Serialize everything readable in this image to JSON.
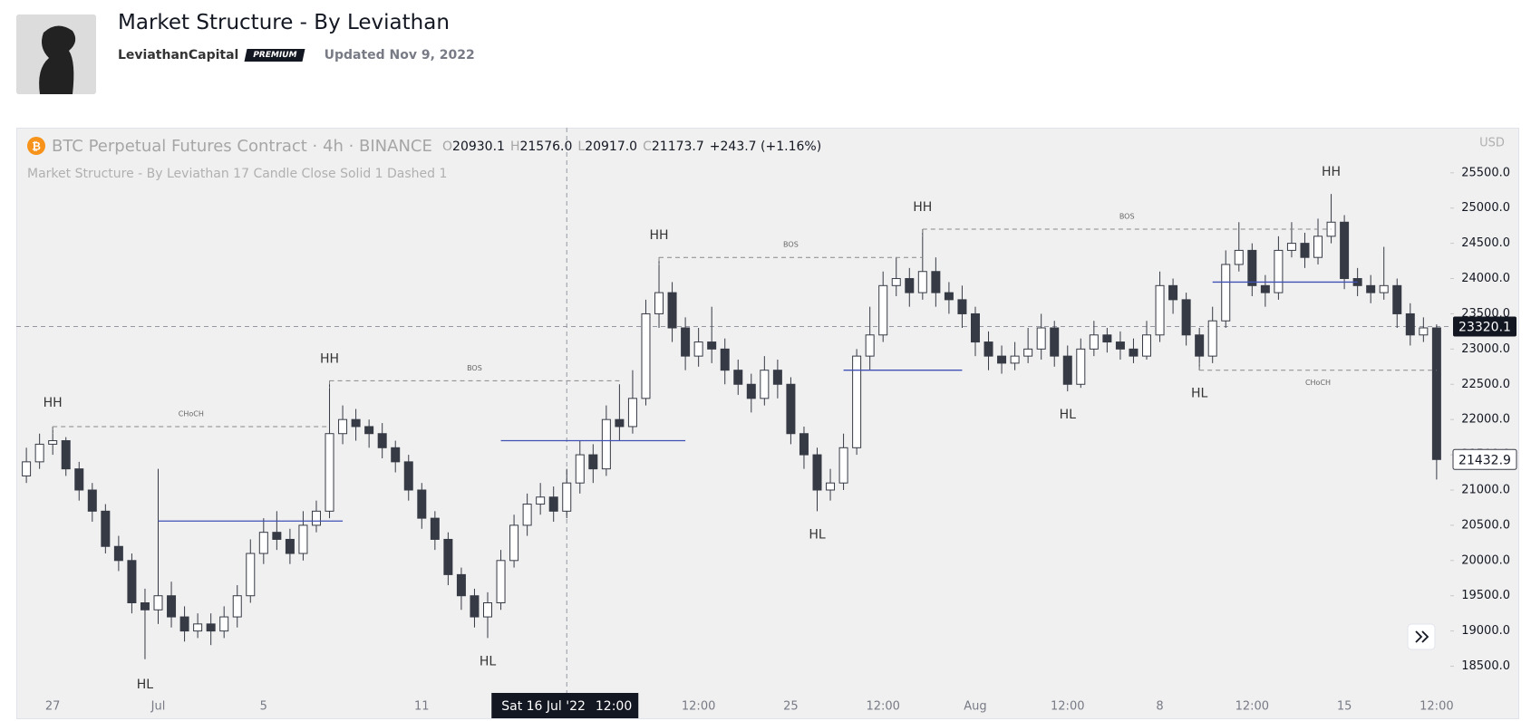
{
  "header": {
    "title": "Market Structure - By Leviathan",
    "author": "LeviathanCapital",
    "badge": "PREMIUM",
    "updated": "Updated Nov 9, 2022"
  },
  "chart_data": {
    "type": "candlestick",
    "symbol": "BTC Perpetual Futures Contract · 4h · BINANCE",
    "legend": {
      "o_label": "O",
      "o": "20930.1",
      "h_label": "H",
      "h": "21576.0",
      "l_label": "L",
      "l": "20917.0",
      "c_label": "C",
      "c": "21173.7",
      "change": "+243.7 (+1.16%)"
    },
    "indicator": "Market Structure - By Leviathan 17 Candle Close Solid 1 Dashed 1",
    "currency": "USD",
    "categories": [
      null,
      null,
      "27",
      null,
      null,
      null,
      null,
      null,
      null,
      null,
      "Jul",
      null,
      null,
      null,
      null,
      null,
      null,
      null,
      "5",
      null,
      null,
      null,
      null,
      null,
      null,
      null,
      null,
      null,
      null,
      null,
      "11",
      null,
      null,
      null,
      null,
      null,
      null,
      null,
      null,
      null,
      null,
      null,
      null,
      null,
      null,
      null,
      null,
      null,
      null,
      null,
      null,
      "12:00",
      null,
      null,
      null,
      null,
      null,
      null,
      "25",
      null,
      null,
      null,
      null,
      null,
      null,
      "12:00",
      null,
      null,
      null,
      null,
      null,
      null,
      "Aug",
      null,
      null,
      null,
      null,
      null,
      null,
      "12:00",
      null,
      null,
      null,
      null,
      null,
      null,
      "8",
      null,
      null,
      null,
      null,
      null,
      null,
      "12:00",
      null,
      null,
      null,
      null,
      null,
      null,
      "15",
      null,
      null,
      null,
      null,
      null,
      null,
      "12:00"
    ],
    "open": [
      21200,
      21400,
      21650,
      21700,
      21300,
      21000,
      20700,
      20200,
      20000,
      19400,
      19300,
      19500,
      19200,
      19000,
      19100,
      19000,
      19200,
      19500,
      20100,
      20400,
      20300,
      20100,
      20500,
      20700,
      21800,
      22000,
      21900,
      21800,
      21600,
      21400,
      21000,
      20600,
      20300,
      19800,
      19500,
      19200,
      19400,
      20000,
      20500,
      20800,
      20900,
      20700,
      21100,
      21500,
      21300,
      22000,
      21900,
      22300,
      23500,
      23800,
      23300,
      22900,
      23100,
      23000,
      22700,
      22500,
      22300,
      22700,
      22500,
      21800,
      21500,
      21000,
      21100,
      21600,
      22900,
      23200,
      23900,
      24000,
      23800,
      24100,
      23800,
      23700,
      23500,
      23100,
      22900,
      22800,
      22900,
      23000,
      23300,
      22900,
      22500,
      23000,
      23200,
      23100,
      23000,
      22900,
      23200,
      23900,
      23700,
      23200,
      22900,
      23400,
      24200,
      24400,
      23900,
      23800,
      24400,
      24500,
      24300,
      24600,
      24800,
      24000,
      23900,
      23800,
      23900,
      23500,
      23200,
      23300
    ],
    "high": [
      21600,
      21800,
      21900,
      21750,
      21400,
      21100,
      20800,
      20350,
      20100,
      19600,
      21300,
      19700,
      19350,
      19250,
      19250,
      19350,
      19650,
      20300,
      20600,
      20700,
      20450,
      20700,
      20850,
      22550,
      22200,
      22150,
      22000,
      21950,
      21700,
      21500,
      21100,
      20700,
      20400,
      19900,
      19600,
      19550,
      20150,
      20650,
      20950,
      21100,
      21050,
      21300,
      21700,
      21650,
      22200,
      22500,
      22700,
      23700,
      24300,
      23950,
      23450,
      23300,
      23600,
      23150,
      22850,
      22650,
      22900,
      22850,
      22600,
      21900,
      21600,
      21300,
      21800,
      23000,
      23600,
      24100,
      24300,
      24150,
      24700,
      24300,
      23950,
      23900,
      23600,
      23250,
      23050,
      23100,
      23300,
      23500,
      23400,
      23050,
      23150,
      23400,
      23300,
      23250,
      23150,
      23400,
      24100,
      24000,
      23800,
      23300,
      23600,
      24400,
      24800,
      24500,
      24050,
      24600,
      24800,
      24650,
      24850,
      25200,
      24900,
      24150,
      24050,
      24450,
      24000,
      23650,
      23450,
      23350
    ],
    "low": [
      21100,
      21300,
      21500,
      21200,
      20850,
      20550,
      20100,
      19850,
      19250,
      18600,
      19100,
      19050,
      18850,
      18900,
      18800,
      18900,
      19050,
      19400,
      19950,
      20150,
      19950,
      20000,
      20400,
      20600,
      21650,
      21700,
      21600,
      21450,
      21250,
      20850,
      20450,
      20150,
      19650,
      19300,
      19050,
      18900,
      19300,
      19900,
      20350,
      20650,
      20550,
      20600,
      20950,
      21100,
      21200,
      21700,
      21800,
      22200,
      23300,
      23100,
      22700,
      22750,
      22800,
      22500,
      22350,
      22100,
      22200,
      22300,
      21650,
      21300,
      20700,
      20850,
      21000,
      21500,
      22700,
      23100,
      23750,
      23600,
      23700,
      23600,
      23500,
      23300,
      22900,
      22700,
      22650,
      22700,
      22800,
      22850,
      22750,
      22400,
      22450,
      22900,
      22950,
      22850,
      22800,
      22850,
      23100,
      23500,
      23050,
      22700,
      22800,
      23300,
      24100,
      23750,
      23600,
      23700,
      24300,
      24150,
      24200,
      24500,
      23850,
      23750,
      23650,
      23700,
      23300,
      23050,
      23100,
      21150
    ],
    "close": [
      21400,
      21650,
      21700,
      21300,
      21000,
      20700,
      20200,
      20000,
      19400,
      19300,
      19500,
      19200,
      19000,
      19100,
      19000,
      19200,
      19500,
      20100,
      20400,
      20300,
      20100,
      20500,
      20700,
      21800,
      22000,
      21900,
      21800,
      21600,
      21400,
      21000,
      20600,
      20300,
      19800,
      19500,
      19200,
      19400,
      20000,
      20500,
      20800,
      20900,
      20700,
      21100,
      21500,
      21300,
      22000,
      21900,
      22300,
      23500,
      23800,
      23300,
      22900,
      23100,
      23000,
      22700,
      22500,
      22300,
      22700,
      22500,
      21800,
      21500,
      21000,
      21100,
      21600,
      22900,
      23200,
      23900,
      24000,
      23800,
      24100,
      23800,
      23700,
      23500,
      23100,
      22900,
      22800,
      22900,
      23000,
      23300,
      22900,
      22500,
      23000,
      23200,
      23100,
      23000,
      22900,
      23200,
      23900,
      23700,
      23200,
      22900,
      23400,
      24200,
      24400,
      23900,
      23800,
      24400,
      24500,
      24300,
      24600,
      24800,
      24000,
      23900,
      23800,
      23900,
      23500,
      23200,
      23300,
      21432.9
    ],
    "up_color": "#ffffff",
    "down_color": "#363a45",
    "ylim": [
      18160,
      26140
    ],
    "yticks": [
      {
        "value": 18500,
        "label": "18500.0"
      },
      {
        "value": 19000,
        "label": "19000.0"
      },
      {
        "value": 19500,
        "label": "19500.0"
      },
      {
        "value": 20000,
        "label": "20000.0"
      },
      {
        "value": 20500,
        "label": "20500.0"
      },
      {
        "value": 21000,
        "label": "21000.0"
      },
      {
        "value": 21500,
        "label": "21500.0"
      },
      {
        "value": 22000,
        "label": "22000.0"
      },
      {
        "value": 22500,
        "label": "22500.0"
      },
      {
        "value": 23000,
        "label": "23000.0"
      },
      {
        "value": 23500,
        "label": "23500.0"
      },
      {
        "value": 24000,
        "label": "24000.0"
      },
      {
        "value": 24500,
        "label": "24500.0"
      },
      {
        "value": 25000,
        "label": "25000.0"
      },
      {
        "value": 25500,
        "label": "25500.0"
      }
    ],
    "grid": false,
    "annotations": [
      "HH",
      "HL",
      "HH",
      "HL",
      "HH",
      "HL",
      "HH",
      "HL",
      "HL",
      "HH"
    ],
    "structure_labels": [
      "CHoCH",
      "BOS",
      "BOS",
      "BOS",
      "CHoCH"
    ],
    "blue_levels": [
      20560,
      21700,
      22700,
      23950
    ],
    "blue_color": "#3f51b5",
    "crosshair": {
      "date": "Sat 16 Jul '22",
      "time": "12:00",
      "price": 23320.1
    },
    "last_price": 21432.9
  }
}
